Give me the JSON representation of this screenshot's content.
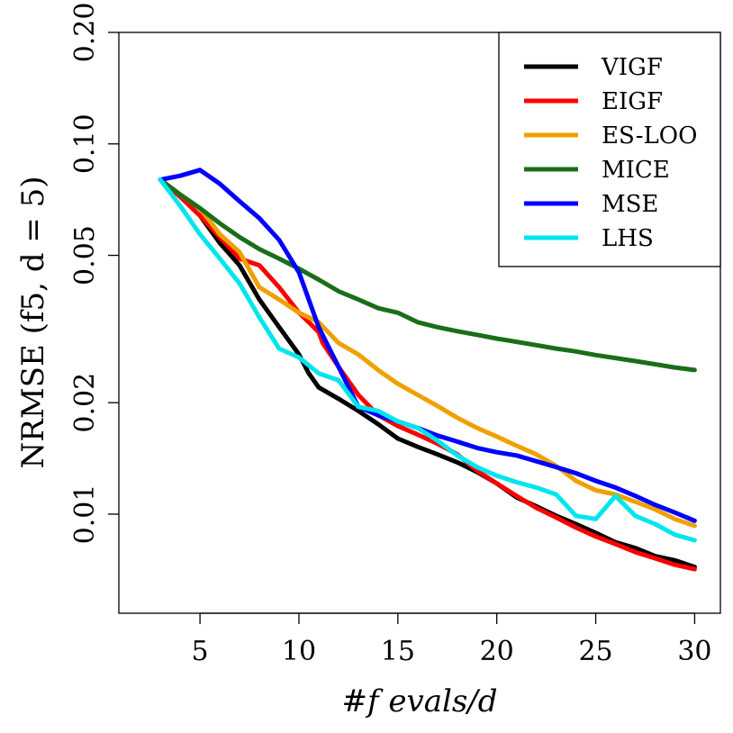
{
  "chart_data": {
    "type": "line",
    "xlabel": "#f evals/d",
    "ylabel": "NRMSE (f5, d = 5)",
    "xlim": [
      0.9,
      31.3
    ],
    "ylim": [
      0.0054,
      0.2
    ],
    "y_scale": "log",
    "x_ticks": [
      5,
      10,
      15,
      20,
      25,
      30
    ],
    "y_ticks": [
      0.01,
      0.02,
      0.05,
      0.1,
      0.2
    ],
    "y_tick_labels": [
      "0.01",
      "0.02",
      "0.05",
      "0.10",
      "0.20"
    ],
    "grid": false,
    "legend_position": "top-right",
    "series": [
      {
        "name": "VIGF",
        "color": "#000000",
        "x": [
          3,
          4,
          5,
          6,
          7,
          8,
          9,
          10,
          10.5,
          11,
          12,
          13,
          14,
          15,
          16,
          17,
          18,
          19,
          20,
          21,
          22,
          23,
          24,
          25,
          26,
          27,
          28,
          29,
          30
        ],
        "y": [
          0.08,
          0.072,
          0.064,
          0.054,
          0.047,
          0.038,
          0.032,
          0.027,
          0.024,
          0.022,
          0.0205,
          0.019,
          0.0175,
          0.016,
          0.0152,
          0.0145,
          0.0138,
          0.013,
          0.0121,
          0.0111,
          0.0105,
          0.0099,
          0.0094,
          0.0089,
          0.0084,
          0.0081,
          0.0077,
          0.0075,
          0.0072
        ]
      },
      {
        "name": "EIGF",
        "color": "#ff0000",
        "x": [
          3,
          4,
          5,
          6,
          7,
          8,
          9,
          10,
          10.5,
          11,
          11.2,
          12,
          13,
          14,
          15,
          16,
          17,
          18,
          19,
          20,
          21,
          22,
          23,
          24,
          25,
          26,
          27,
          28,
          29,
          30
        ],
        "y": [
          0.08,
          0.072,
          0.064,
          0.056,
          0.049,
          0.047,
          0.041,
          0.035,
          0.033,
          0.031,
          0.029,
          0.025,
          0.021,
          0.0185,
          0.0173,
          0.0164,
          0.0155,
          0.0145,
          0.0131,
          0.0121,
          0.0112,
          0.0104,
          0.0098,
          0.0092,
          0.0087,
          0.0083,
          0.0079,
          0.0076,
          0.0073,
          0.0071
        ]
      },
      {
        "name": "ES-LOO",
        "color": "#f0a000",
        "x": [
          3,
          4,
          5,
          6,
          7,
          8,
          9,
          10,
          11,
          12,
          13,
          14,
          15,
          16,
          17,
          18,
          19,
          20,
          21,
          22,
          23,
          24,
          25,
          26,
          27,
          28,
          29,
          30
        ],
        "y": [
          0.08,
          0.073,
          0.067,
          0.057,
          0.051,
          0.041,
          0.038,
          0.035,
          0.033,
          0.029,
          0.027,
          0.0245,
          0.0225,
          0.021,
          0.0196,
          0.0182,
          0.0171,
          0.0162,
          0.0153,
          0.0145,
          0.0135,
          0.0123,
          0.0116,
          0.0113,
          0.0108,
          0.0103,
          0.0097,
          0.0093
        ]
      },
      {
        "name": "MICE",
        "color": "#1a6e1a",
        "x": [
          3,
          4,
          5,
          6,
          7,
          8,
          9,
          10,
          11,
          12,
          13,
          14,
          15,
          16,
          17,
          18,
          19,
          20,
          21,
          22,
          23,
          24,
          25,
          26,
          27,
          28,
          29,
          30
        ],
        "y": [
          0.08,
          0.073,
          0.067,
          0.061,
          0.056,
          0.052,
          0.049,
          0.046,
          0.043,
          0.04,
          0.038,
          0.036,
          0.035,
          0.033,
          0.032,
          0.0312,
          0.0305,
          0.0298,
          0.0292,
          0.0286,
          0.028,
          0.0275,
          0.0269,
          0.0264,
          0.0259,
          0.0254,
          0.0249,
          0.0245
        ]
      },
      {
        "name": "MSE",
        "color": "#0000ff",
        "x": [
          3,
          4,
          5,
          6,
          7,
          8,
          9,
          10,
          11,
          12,
          13,
          14,
          15,
          16,
          17,
          18,
          19,
          20,
          21,
          22,
          23,
          24,
          25,
          26,
          27,
          28,
          29,
          30
        ],
        "y": [
          0.08,
          0.082,
          0.085,
          0.078,
          0.07,
          0.063,
          0.055,
          0.045,
          0.032,
          0.025,
          0.0195,
          0.0185,
          0.0178,
          0.0171,
          0.0163,
          0.0157,
          0.0151,
          0.0147,
          0.0144,
          0.0139,
          0.0134,
          0.0129,
          0.0123,
          0.0118,
          0.0112,
          0.0106,
          0.0101,
          0.0096
        ]
      },
      {
        "name": "LHS",
        "color": "#00e5ee",
        "x": [
          3,
          4,
          5,
          6,
          7,
          8,
          9,
          10,
          11,
          12,
          13,
          14,
          15,
          16,
          17,
          18,
          19,
          20,
          21,
          22,
          23,
          24,
          25,
          26,
          27,
          28,
          29,
          30
        ],
        "y": [
          0.08,
          0.068,
          0.057,
          0.049,
          0.042,
          0.034,
          0.028,
          0.0265,
          0.024,
          0.023,
          0.0195,
          0.019,
          0.0178,
          0.0171,
          0.0158,
          0.0144,
          0.0134,
          0.0127,
          0.0122,
          0.0118,
          0.0113,
          0.0099,
          0.0097,
          0.0112,
          0.0099,
          0.0094,
          0.0088,
          0.0085
        ]
      }
    ]
  }
}
